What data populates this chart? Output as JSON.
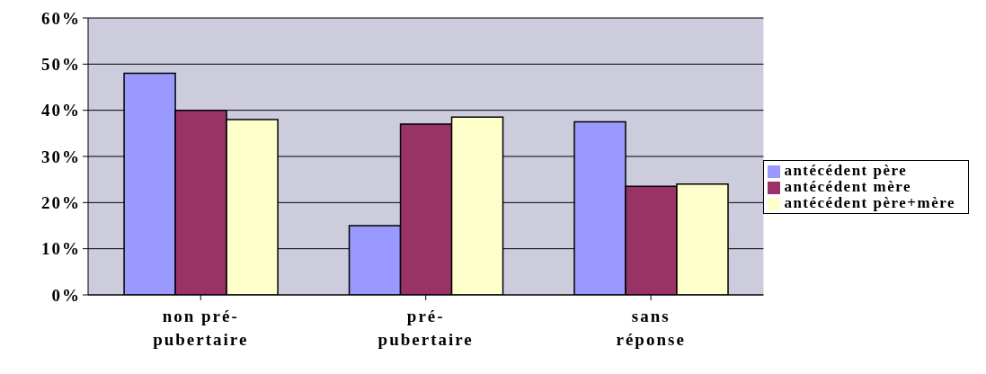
{
  "chart_data": {
    "type": "bar",
    "categories": [
      "non pré-pubertaire",
      "pré-pubertaire",
      "sans réponse"
    ],
    "series": [
      {
        "name": "antécédent père",
        "color": "#9999ff",
        "values": [
          48,
          15,
          37.5
        ]
      },
      {
        "name": "antécédent mère",
        "color": "#993366",
        "values": [
          40,
          37,
          23.5
        ]
      },
      {
        "name": "antécédent père+mère",
        "color": "#ffffcc",
        "values": [
          38,
          38.5,
          24
        ]
      }
    ],
    "ylim": [
      0,
      60
    ],
    "yticks": [
      {
        "value": 0,
        "label": "0%"
      },
      {
        "value": 10,
        "label": "10%"
      },
      {
        "value": 20,
        "label": "20%"
      },
      {
        "value": 30,
        "label": "30%"
      },
      {
        "value": 40,
        "label": "40%"
      },
      {
        "value": 50,
        "label": "50%"
      },
      {
        "value": 60,
        "label": "60%"
      }
    ],
    "grid": "y",
    "legend": "right"
  }
}
